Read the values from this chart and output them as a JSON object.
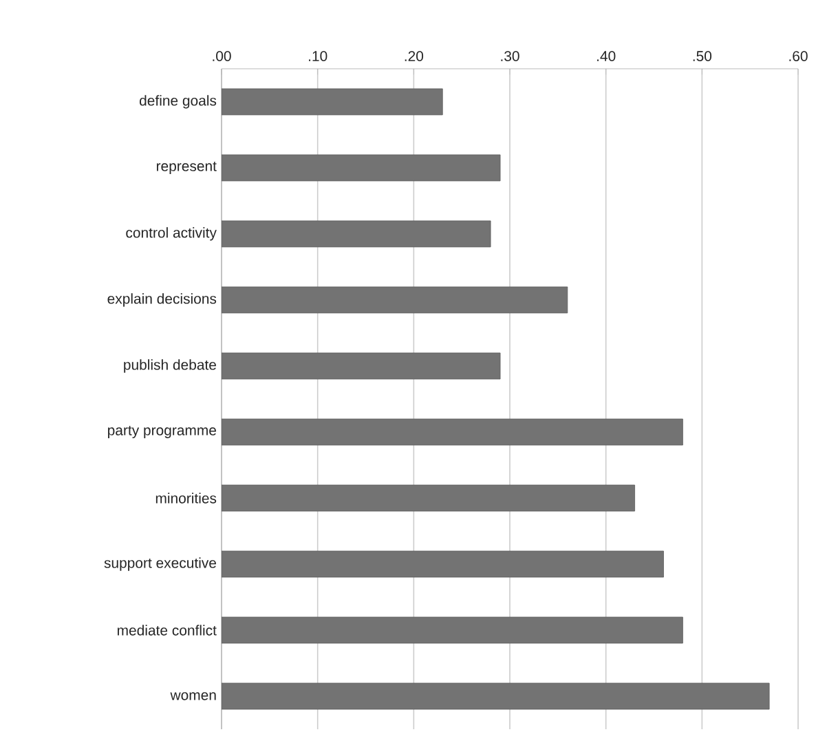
{
  "chart_data": {
    "type": "bar",
    "orientation": "horizontal",
    "categories": [
      "define goals",
      "represent",
      "control activity",
      "explain decisions",
      "publish debate",
      "party programme",
      "minorities",
      "support executive",
      "mediate conflict",
      "women"
    ],
    "values": [
      0.23,
      0.29,
      0.28,
      0.36,
      0.29,
      0.48,
      0.43,
      0.46,
      0.48,
      0.57
    ],
    "color": "#737373",
    "xlim": [
      0,
      0.6
    ],
    "xticks": [
      {
        "value": 0,
        "label": ".00"
      },
      {
        "value": 0.1,
        "label": ".10"
      },
      {
        "value": 0.2,
        "label": ".20"
      },
      {
        "value": 0.3,
        "label": ".30"
      },
      {
        "value": 0.4,
        "label": ".40"
      },
      {
        "value": 0.5,
        "label": ".50"
      },
      {
        "value": 0.6,
        "label": ".60"
      }
    ],
    "grid": "x"
  }
}
